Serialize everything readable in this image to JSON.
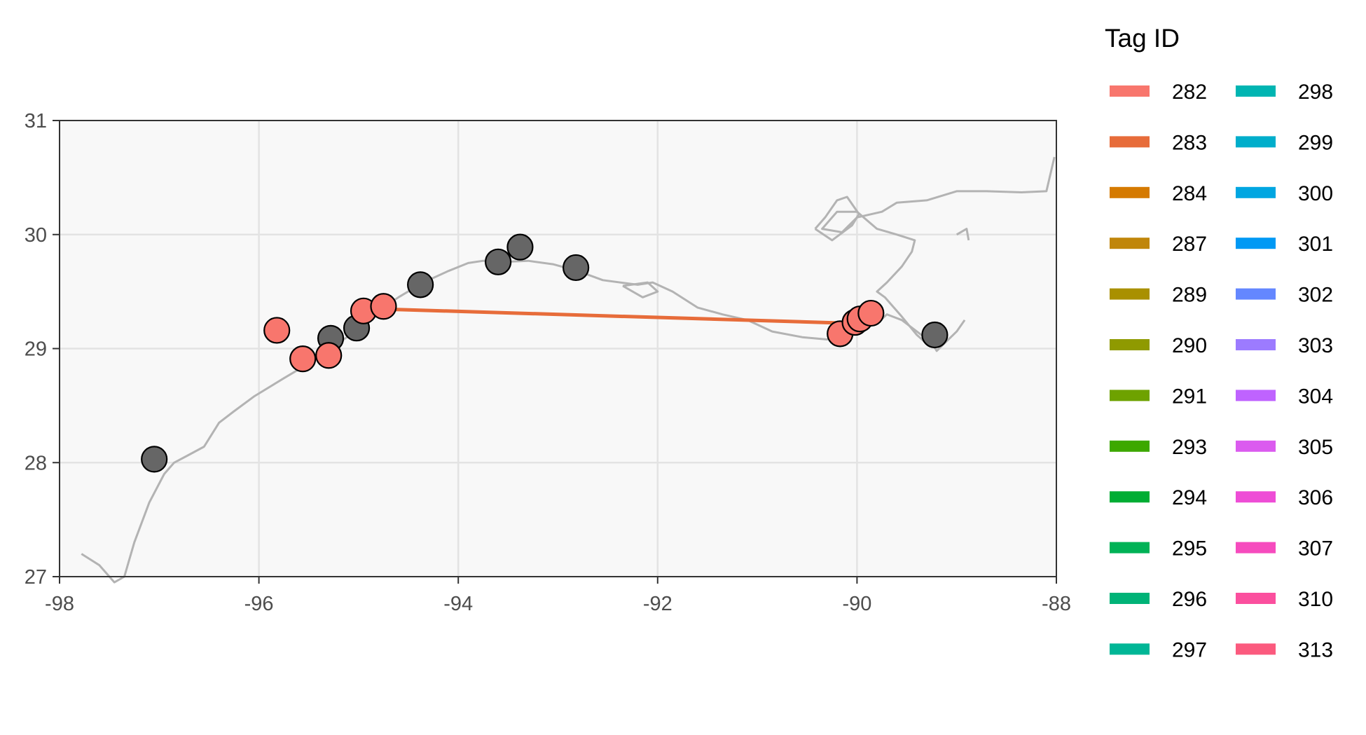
{
  "chart_data": {
    "type": "scatter",
    "map": "Gulf of Mexico coastline (Texas–Louisiana)",
    "xlim": [
      -98,
      -88
    ],
    "ylim": [
      27,
      31
    ],
    "x_ticks": [
      "-98",
      "-96",
      "-94",
      "-92",
      "-90",
      "-88"
    ],
    "y_ticks": [
      "27",
      "28",
      "29",
      "30",
      "31"
    ],
    "x_tick_values": [
      -98,
      -96,
      -94,
      -92,
      -90,
      -88
    ],
    "y_tick_values": [
      27,
      28,
      29,
      30,
      31
    ],
    "grid": true,
    "legend_position": "right",
    "legend": {
      "title": "Tag ID",
      "entries": [
        {
          "label": "282",
          "color": "#F8766D"
        },
        {
          "label": "283",
          "color": "#E76C3A"
        },
        {
          "label": "284",
          "color": "#D57A00"
        },
        {
          "label": "287",
          "color": "#C0860A"
        },
        {
          "label": "289",
          "color": "#A99000"
        },
        {
          "label": "290",
          "color": "#8F9A00"
        },
        {
          "label": "291",
          "color": "#6EA200"
        },
        {
          "label": "293",
          "color": "#3DA800"
        },
        {
          "label": "294",
          "color": "#00AD34"
        },
        {
          "label": "295",
          "color": "#00B256"
        },
        {
          "label": "296",
          "color": "#00B377"
        },
        {
          "label": "297",
          "color": "#00B696"
        },
        {
          "label": "298",
          "color": "#00B5B2"
        },
        {
          "label": "299",
          "color": "#00AECB"
        },
        {
          "label": "300",
          "color": "#00A6E1"
        },
        {
          "label": "301",
          "color": "#0099F4"
        },
        {
          "label": "302",
          "color": "#6487FF"
        },
        {
          "label": "303",
          "color": "#9C7BFF"
        },
        {
          "label": "304",
          "color": "#BF63FF"
        },
        {
          "label": "305",
          "color": "#DB5BEF"
        },
        {
          "label": "306",
          "color": "#EE4DD6"
        },
        {
          "label": "307",
          "color": "#F64BBE"
        },
        {
          "label": "310",
          "color": "#FB4F9E"
        },
        {
          "label": "313",
          "color": "#FB5A7E"
        }
      ]
    },
    "receivers": {
      "color": "#666666",
      "points": [
        {
          "x": -97.05,
          "y": 28.03
        },
        {
          "x": -95.28,
          "y": 29.09
        },
        {
          "x": -95.02,
          "y": 29.18
        },
        {
          "x": -94.38,
          "y": 29.56
        },
        {
          "x": -93.6,
          "y": 29.76
        },
        {
          "x": -93.38,
          "y": 29.89
        },
        {
          "x": -92.82,
          "y": 29.71
        },
        {
          "x": -89.22,
          "y": 29.12
        }
      ]
    },
    "detections": {
      "color": "#F8766D",
      "points": [
        {
          "x": -95.82,
          "y": 29.16
        },
        {
          "x": -95.56,
          "y": 28.91
        },
        {
          "x": -95.3,
          "y": 28.94
        },
        {
          "x": -94.95,
          "y": 29.33
        },
        {
          "x": -94.75,
          "y": 29.37
        },
        {
          "x": -90.17,
          "y": 29.13
        },
        {
          "x": -90.02,
          "y": 29.23
        },
        {
          "x": -89.97,
          "y": 29.26
        },
        {
          "x": -89.86,
          "y": 29.31
        }
      ]
    },
    "tracks": [
      {
        "tag": "283",
        "color": "#E76C3A",
        "points": [
          {
            "x": -94.9,
            "y": 29.35
          },
          {
            "x": -90.0,
            "y": 29.22
          }
        ]
      },
      {
        "tag": "306",
        "color": "#EE4DD6",
        "points": [
          {
            "x": -90.0,
            "y": 29.22
          },
          {
            "x": -89.9,
            "y": 29.27
          }
        ]
      }
    ],
    "coastline_color": "#b3b3b3",
    "land_color": "#f8f8f8",
    "coastline": [
      [
        [
          -97.78,
          27.2
        ],
        [
          -97.6,
          27.1
        ],
        [
          -97.45,
          26.95
        ],
        [
          -97.35,
          27.0
        ],
        [
          -97.25,
          27.3
        ],
        [
          -97.1,
          27.65
        ],
        [
          -96.95,
          27.9
        ],
        [
          -96.85,
          28.0
        ],
        [
          -96.72,
          28.06
        ],
        [
          -96.55,
          28.14
        ],
        [
          -96.4,
          28.35
        ],
        [
          -96.25,
          28.45
        ],
        [
          -96.05,
          28.58
        ],
        [
          -95.75,
          28.74
        ],
        [
          -95.5,
          28.87
        ],
        [
          -95.25,
          29.02
        ],
        [
          -95.0,
          29.17
        ],
        [
          -94.8,
          29.33
        ],
        [
          -94.6,
          29.45
        ],
        [
          -94.35,
          29.58
        ],
        [
          -94.1,
          29.68
        ],
        [
          -93.9,
          29.75
        ],
        [
          -93.75,
          29.77
        ],
        [
          -93.55,
          29.76
        ],
        [
          -93.3,
          29.77
        ],
        [
          -93.05,
          29.74
        ],
        [
          -92.8,
          29.68
        ],
        [
          -92.55,
          29.6
        ],
        [
          -92.2,
          29.56
        ],
        [
          -92.05,
          29.58
        ],
        [
          -91.85,
          29.5
        ],
        [
          -91.6,
          29.36
        ],
        [
          -91.35,
          29.3
        ],
        [
          -91.1,
          29.25
        ],
        [
          -90.85,
          29.15
        ],
        [
          -90.55,
          29.1
        ],
        [
          -90.3,
          29.08
        ],
        [
          -90.1,
          29.15
        ],
        [
          -90.0,
          29.18
        ],
        [
          -89.92,
          29.2
        ],
        [
          -89.8,
          29.22
        ],
        [
          -89.7,
          29.3
        ],
        [
          -89.55,
          29.25
        ],
        [
          -89.4,
          29.15
        ],
        [
          -89.25,
          29.05
        ],
        [
          -89.2,
          28.98
        ],
        [
          -89.0,
          29.15
        ],
        [
          -88.92,
          29.25
        ]
      ],
      [
        [
          -89.27,
          29.02
        ],
        [
          -89.4,
          29.12
        ],
        [
          -89.55,
          29.28
        ],
        [
          -89.72,
          29.45
        ],
        [
          -89.8,
          29.5
        ],
        [
          -89.7,
          29.58
        ],
        [
          -89.55,
          29.72
        ],
        [
          -89.45,
          29.85
        ],
        [
          -89.42,
          29.95
        ],
        [
          -89.6,
          30.0
        ],
        [
          -89.8,
          30.05
        ],
        [
          -90.0,
          30.2
        ],
        [
          -90.2,
          30.2
        ],
        [
          -90.35,
          30.05
        ],
        [
          -90.15,
          30.02
        ],
        [
          -90.0,
          30.15
        ],
        [
          -89.75,
          30.2
        ],
        [
          -89.6,
          30.28
        ],
        [
          -89.3,
          30.3
        ],
        [
          -89.0,
          30.38
        ],
        [
          -88.7,
          30.38
        ],
        [
          -88.35,
          30.37
        ],
        [
          -88.1,
          30.38
        ],
        [
          -88.02,
          30.68
        ]
      ],
      [
        [
          -90.42,
          30.05
        ],
        [
          -90.32,
          30.15
        ],
        [
          -90.2,
          30.3
        ],
        [
          -90.1,
          30.33
        ],
        [
          -89.98,
          30.18
        ],
        [
          -90.05,
          30.08
        ],
        [
          -90.25,
          29.95
        ],
        [
          -90.42,
          30.05
        ]
      ],
      [
        [
          -89.0,
          30.0
        ],
        [
          -88.9,
          30.05
        ],
        [
          -88.88,
          29.95
        ]
      ],
      [
        [
          -92.35,
          29.55
        ],
        [
          -92.15,
          29.45
        ],
        [
          -92.0,
          29.5
        ],
        [
          -92.1,
          29.58
        ],
        [
          -92.35,
          29.55
        ]
      ]
    ]
  }
}
